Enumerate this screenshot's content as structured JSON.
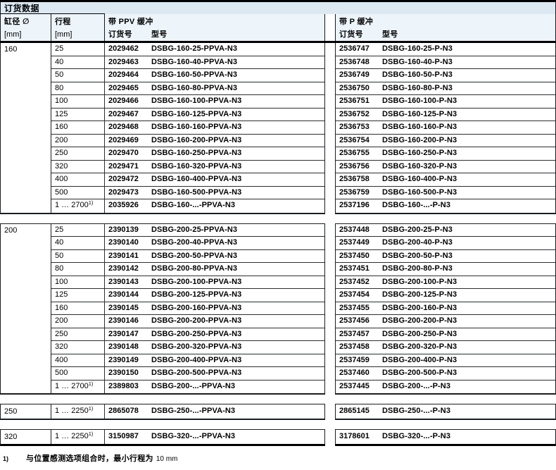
{
  "title": "订货数据",
  "colors": {
    "title_bg": "#dce9f3",
    "header_bg": "#edf4fa",
    "heavy_border": "#000000",
    "row_line": "#2b2e33"
  },
  "header": {
    "bore_label": "缸径 ∅",
    "bore_unit": "[mm]",
    "stroke_label": "行程",
    "stroke_unit": "[mm]",
    "ppv_group": "带 PPV 缓冲",
    "p_group": "带 P 缓冲",
    "order_no": "订货号",
    "type": "型号"
  },
  "sections": [
    {
      "bore": "160",
      "rows": [
        {
          "stroke": "25",
          "ppv_code": "2029462",
          "ppv_type": "DSBG-160-25-PPVA-N3",
          "p_code": "2536747",
          "p_type": "DSBG-160-25-P-N3"
        },
        {
          "stroke": "40",
          "ppv_code": "2029463",
          "ppv_type": "DSBG-160-40-PPVA-N3",
          "p_code": "2536748",
          "p_type": "DSBG-160-40-P-N3"
        },
        {
          "stroke": "50",
          "ppv_code": "2029464",
          "ppv_type": "DSBG-160-50-PPVA-N3",
          "p_code": "2536749",
          "p_type": "DSBG-160-50-P-N3"
        },
        {
          "stroke": "80",
          "ppv_code": "2029465",
          "ppv_type": "DSBG-160-80-PPVA-N3",
          "p_code": "2536750",
          "p_type": "DSBG-160-80-P-N3"
        },
        {
          "stroke": "100",
          "ppv_code": "2029466",
          "ppv_type": "DSBG-160-100-PPVA-N3",
          "p_code": "2536751",
          "p_type": "DSBG-160-100-P-N3"
        },
        {
          "stroke": "125",
          "ppv_code": "2029467",
          "ppv_type": "DSBG-160-125-PPVA-N3",
          "p_code": "2536752",
          "p_type": "DSBG-160-125-P-N3"
        },
        {
          "stroke": "160",
          "ppv_code": "2029468",
          "ppv_type": "DSBG-160-160-PPVA-N3",
          "p_code": "2536753",
          "p_type": "DSBG-160-160-P-N3"
        },
        {
          "stroke": "200",
          "ppv_code": "2029469",
          "ppv_type": "DSBG-160-200-PPVA-N3",
          "p_code": "2536754",
          "p_type": "DSBG-160-200-P-N3"
        },
        {
          "stroke": "250",
          "ppv_code": "2029470",
          "ppv_type": "DSBG-160-250-PPVA-N3",
          "p_code": "2536755",
          "p_type": "DSBG-160-250-P-N3"
        },
        {
          "stroke": "320",
          "ppv_code": "2029471",
          "ppv_type": "DSBG-160-320-PPVA-N3",
          "p_code": "2536756",
          "p_type": "DSBG-160-320-P-N3"
        },
        {
          "stroke": "400",
          "ppv_code": "2029472",
          "ppv_type": "DSBG-160-400-PPVA-N3",
          "p_code": "2536758",
          "p_type": "DSBG-160-400-P-N3"
        },
        {
          "stroke": "500",
          "ppv_code": "2029473",
          "ppv_type": "DSBG-160-500-PPVA-N3",
          "p_code": "2536759",
          "p_type": "DSBG-160-500-P-N3"
        },
        {
          "stroke": "1 … 2700",
          "sup": "1)",
          "ppv_code": "2035926",
          "ppv_type": "DSBG-160-...-PPVA-N3",
          "p_code": "2537196",
          "p_type": "DSBG-160-...-P-N3"
        }
      ]
    },
    {
      "bore": "200",
      "rows": [
        {
          "stroke": "25",
          "ppv_code": "2390139",
          "ppv_type": "DSBG-200-25-PPVA-N3",
          "p_code": "2537448",
          "p_type": "DSBG-200-25-P-N3"
        },
        {
          "stroke": "40",
          "ppv_code": "2390140",
          "ppv_type": "DSBG-200-40-PPVA-N3",
          "p_code": "2537449",
          "p_type": "DSBG-200-40-P-N3"
        },
        {
          "stroke": "50",
          "ppv_code": "2390141",
          "ppv_type": "DSBG-200-50-PPVA-N3",
          "p_code": "2537450",
          "p_type": "DSBG-200-50-P-N3"
        },
        {
          "stroke": "80",
          "ppv_code": "2390142",
          "ppv_type": "DSBG-200-80-PPVA-N3",
          "p_code": "2537451",
          "p_type": "DSBG-200-80-P-N3"
        },
        {
          "stroke": "100",
          "ppv_code": "2390143",
          "ppv_type": "DSBG-200-100-PPVA-N3",
          "p_code": "2537452",
          "p_type": "DSBG-200-100-P-N3"
        },
        {
          "stroke": "125",
          "ppv_code": "2390144",
          "ppv_type": "DSBG-200-125-PPVA-N3",
          "p_code": "2537454",
          "p_type": "DSBG-200-125-P-N3"
        },
        {
          "stroke": "160",
          "ppv_code": "2390145",
          "ppv_type": "DSBG-200-160-PPVA-N3",
          "p_code": "2537455",
          "p_type": "DSBG-200-160-P-N3"
        },
        {
          "stroke": "200",
          "ppv_code": "2390146",
          "ppv_type": "DSBG-200-200-PPVA-N3",
          "p_code": "2537456",
          "p_type": "DSBG-200-200-P-N3"
        },
        {
          "stroke": "250",
          "ppv_code": "2390147",
          "ppv_type": "DSBG-200-250-PPVA-N3",
          "p_code": "2537457",
          "p_type": "DSBG-200-250-P-N3"
        },
        {
          "stroke": "320",
          "ppv_code": "2390148",
          "ppv_type": "DSBG-200-320-PPVA-N3",
          "p_code": "2537458",
          "p_type": "DSBG-200-320-P-N3"
        },
        {
          "stroke": "400",
          "ppv_code": "2390149",
          "ppv_type": "DSBG-200-400-PPVA-N3",
          "p_code": "2537459",
          "p_type": "DSBG-200-400-P-N3"
        },
        {
          "stroke": "500",
          "ppv_code": "2390150",
          "ppv_type": "DSBG-200-500-PPVA-N3",
          "p_code": "2537460",
          "p_type": "DSBG-200-500-P-N3"
        },
        {
          "stroke": "1 … 2700",
          "sup": "1)",
          "ppv_code": "2389803",
          "ppv_type": "DSBG-200-...-PPVA-N3",
          "p_code": "2537445",
          "p_type": "DSBG-200-...-P-N3"
        }
      ]
    },
    {
      "bore": "250",
      "rows": [
        {
          "stroke": "1 … 2250",
          "sup": "1)",
          "ppv_code": "2865078",
          "ppv_type": "DSBG-250-...-PPVA-N3",
          "p_code": "2865145",
          "p_type": "DSBG-250-...-P-N3"
        }
      ]
    },
    {
      "bore": "320",
      "rows": [
        {
          "stroke": "1 … 2250",
          "sup": "1)",
          "ppv_code": "3150987",
          "ppv_type": "DSBG-320-...-PPVA-N3",
          "p_code": "3178601",
          "p_type": "DSBG-320-...-P-N3"
        }
      ]
    }
  ],
  "footnote": {
    "marker": "1)",
    "text": "与位置感测选项组合时，最小行程为",
    "value": "10 mm"
  }
}
